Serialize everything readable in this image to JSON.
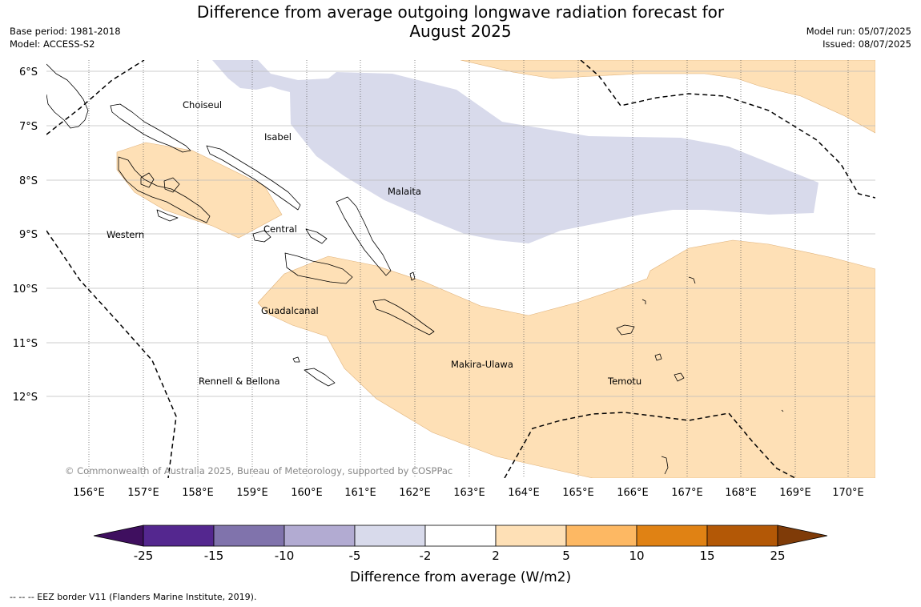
{
  "title_line1": "Difference from average outgoing longwave radiation forecast for",
  "title_line2": "August 2025",
  "base_period": "Base period: 1981-2018",
  "model": "Model: ACCESS-S2",
  "model_run": "Model run: 05/07/2025",
  "issued": "Issued: 08/07/2025",
  "copyright": "© Commonwealth of Australia 2025, Bureau of Meteorology, supported by COSPPac",
  "map": {
    "lon_labels": [
      "156°E",
      "157°E",
      "158°E",
      "159°E",
      "160°E",
      "161°E",
      "162°E",
      "163°E",
      "164°E",
      "165°E",
      "166°E",
      "167°E",
      "168°E",
      "169°E",
      "170°E"
    ],
    "lat_labels": [
      "6°S",
      "7°S",
      "8°S",
      "9°S",
      "10°S",
      "11°S",
      "12°S"
    ],
    "provinces": [
      "Choiseul",
      "Isabel",
      "Malaita",
      "Western",
      "Central",
      "Guadalcanal",
      "Makira-Ulawa",
      "Temotu",
      "Rennell & Bellona"
    ]
  },
  "colorbar": {
    "ticks": [
      "-25",
      "-15",
      "-10",
      "-5",
      "-2",
      "2",
      "5",
      "10",
      "15",
      "25"
    ],
    "colors": [
      "#3f0f5f",
      "#54278f",
      "#8073ac",
      "#b2abd2",
      "#d8daeb",
      "#ffffff",
      "#fee0b6",
      "#fdb863",
      "#e08214",
      "#b35806",
      "#7f3b08"
    ],
    "label": "Difference from average (W/m2)"
  },
  "footer": "--  --  -- EEZ border V11 (Flanders Marine Institute, 2019)."
}
